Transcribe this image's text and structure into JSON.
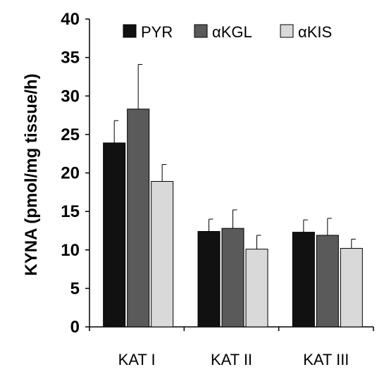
{
  "chart_data": {
    "type": "bar",
    "title": "",
    "xlabel": "",
    "ylabel": "KYNA (pmol/mg tissue/h)",
    "ylim": [
      0,
      40
    ],
    "yticks": [
      0,
      5,
      10,
      15,
      20,
      25,
      30,
      35,
      40
    ],
    "categories": [
      "KAT I",
      "KAT II",
      "KAT III"
    ],
    "series": [
      {
        "name": "PYR",
        "color": "#111111",
        "values": [
          23.9,
          12.4,
          12.3
        ],
        "errors": [
          2.9,
          1.6,
          1.6
        ]
      },
      {
        "name": "αKGL",
        "color": "#5a5a5a",
        "values": [
          28.3,
          12.8,
          11.9
        ],
        "errors": [
          5.8,
          2.4,
          2.2
        ]
      },
      {
        "name": "αKIS",
        "color": "#d9d9d9",
        "values": [
          18.9,
          10.1,
          10.2
        ],
        "errors": [
          2.2,
          1.8,
          1.2
        ]
      }
    ],
    "legend": "top-right",
    "grid": false,
    "error_bars": "upper"
  }
}
